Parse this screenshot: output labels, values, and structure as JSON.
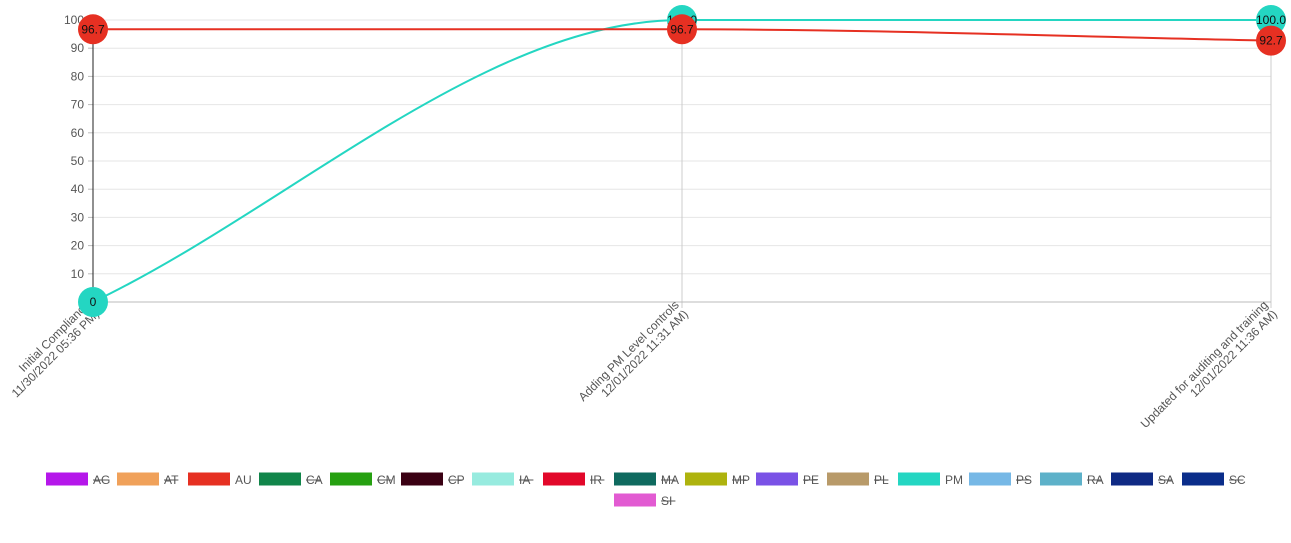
{
  "chart_data": {
    "type": "line",
    "categories": [
      [
        "Initial Compliance",
        "11/30/2022 05:36 PM)"
      ],
      [
        "Adding PM Level controls",
        "12/01/2022 11:31 AM)"
      ],
      [
        "Updated for auditing and training",
        "12/01/2022 11:36 AM)"
      ]
    ],
    "y_ticks": [
      "10",
      "20",
      "30",
      "40",
      "50",
      "60",
      "70",
      "80",
      "90",
      "100"
    ],
    "ylim": [
      0,
      100
    ],
    "grid": true,
    "legend_placement": "bottom",
    "series": [
      {
        "name": "AU",
        "color": "#e63022",
        "values": [
          96.7,
          96.7,
          92.7
        ],
        "labels": [
          "96.7",
          "96.7",
          "92.7"
        ]
      },
      {
        "name": "PM",
        "color": "#24d6c2",
        "values": [
          0,
          100.0,
          100.0
        ],
        "labels": [
          "0",
          "100.0",
          "100.0"
        ]
      }
    ],
    "legend": [
      {
        "name": "AG",
        "color": "#b517ea",
        "hidden": true
      },
      {
        "name": "AT",
        "color": "#f0a15a",
        "hidden": true
      },
      {
        "name": "AU",
        "color": "#e63022",
        "hidden": false
      },
      {
        "name": "CA",
        "color": "#11854a",
        "hidden": true
      },
      {
        "name": "CM",
        "color": "#26a011",
        "hidden": true
      },
      {
        "name": "CP",
        "color": "#3a0013",
        "hidden": true
      },
      {
        "name": "IA",
        "color": "#97ebdf",
        "hidden": true
      },
      {
        "name": "IR",
        "color": "#e2082a",
        "hidden": true
      },
      {
        "name": "MA",
        "color": "#0f6a5f",
        "hidden": true
      },
      {
        "name": "MP",
        "color": "#aeb30e",
        "hidden": true
      },
      {
        "name": "PE",
        "color": "#7a52e6",
        "hidden": true
      },
      {
        "name": "PL",
        "color": "#b89a69",
        "hidden": true
      },
      {
        "name": "PM",
        "color": "#24d6c2",
        "hidden": false
      },
      {
        "name": "PS",
        "color": "#76b8e6",
        "hidden": true
      },
      {
        "name": "RA",
        "color": "#5db1c9",
        "hidden": true
      },
      {
        "name": "SA",
        "color": "#0f2a84",
        "hidden": true
      },
      {
        "name": "SC",
        "color": "#0a2d8a",
        "hidden": true
      },
      {
        "name": "SI",
        "color": "#e25bd2",
        "hidden": true
      }
    ]
  }
}
